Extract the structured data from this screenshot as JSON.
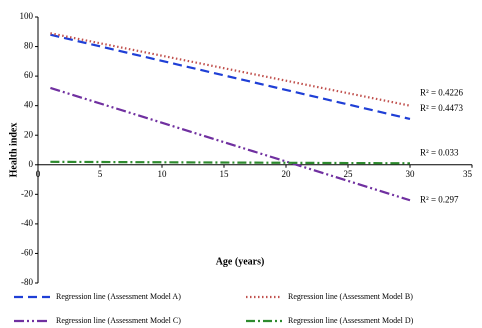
{
  "chart_data": {
    "type": "line",
    "x_label": "Age (years)",
    "y_label": "Health index",
    "x": [
      1,
      30
    ],
    "xlim": [
      0,
      35
    ],
    "xticks": [
      0,
      5,
      10,
      15,
      20,
      25,
      30,
      35
    ],
    "ylim": [
      -80,
      100
    ],
    "yticks": [
      -80,
      -60,
      -40,
      -20,
      0,
      20,
      40,
      60,
      80,
      100
    ],
    "grid": false,
    "series": [
      {
        "name": "Regression line (Assessment Model A)",
        "color": "#1f3fd6",
        "dash": "9,5",
        "values": [
          88,
          31
        ],
        "r2_label": "R² = 0.4473",
        "r2_color": "#1f3fd6"
      },
      {
        "name": "Regression line (Assessment Model B)",
        "color": "#c0504d",
        "dash": "1.5,2.5",
        "values": [
          89,
          40
        ],
        "r2_label": "R² = 0.4226",
        "r2_color": "#e02020"
      },
      {
        "name": "Regression line (Assessment Model C)",
        "color": "#7030a0",
        "dash": "10,3,2,3,2,3",
        "values": [
          52,
          -24
        ],
        "r2_label": "R² = 0.297",
        "r2_color": "#7030a0"
      },
      {
        "name": "Regression line (Assessment Model D)",
        "color": "#2e8b2e",
        "dash": "9,3,2,3",
        "values": [
          2,
          1
        ],
        "r2_label": "R² = 0.033",
        "r2_color": "#2e8b2e"
      }
    ]
  }
}
